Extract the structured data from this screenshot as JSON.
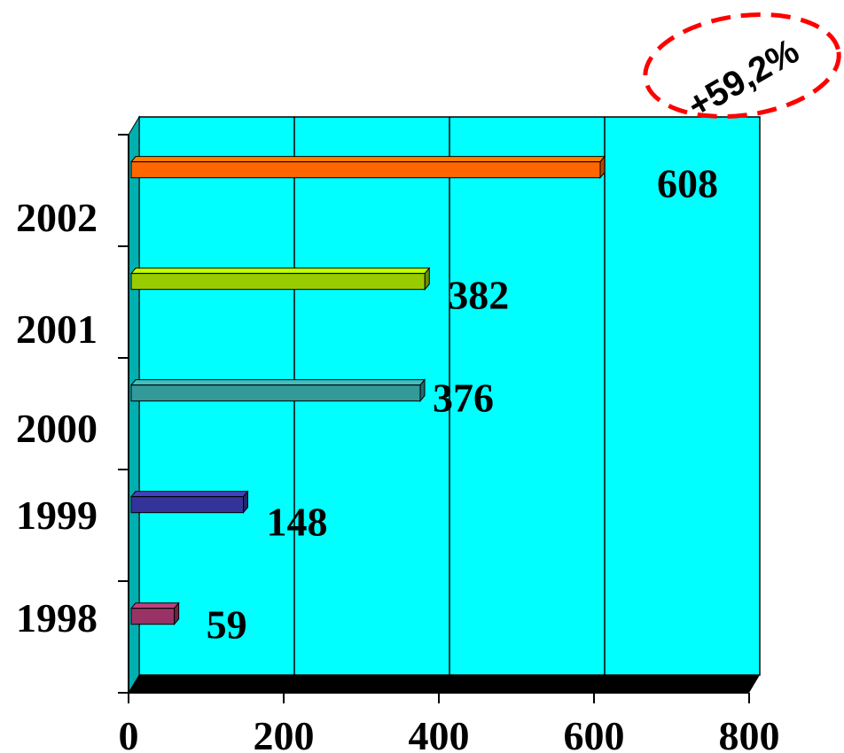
{
  "chart_data": {
    "type": "bar",
    "orientation": "horizontal",
    "categories": [
      "1998",
      "1999",
      "2000",
      "2001",
      "2002"
    ],
    "values": [
      59,
      148,
      376,
      382,
      608
    ],
    "value_labels": [
      "59",
      "148",
      "376",
      "382",
      "608"
    ],
    "bar_colors": [
      "#993366",
      "#333399",
      "#339999",
      "#99CC00",
      "#FF6600"
    ],
    "xlim": [
      0,
      800
    ],
    "x_ticks": [
      "0",
      "200",
      "400",
      "600",
      "800"
    ],
    "plot_background": "#00FFFF",
    "floor_color": "#000000",
    "grid": true,
    "annotation": {
      "text": "+59,2%",
      "ellipse_color": "#FF0000"
    },
    "title": "",
    "xlabel": "",
    "ylabel": ""
  }
}
